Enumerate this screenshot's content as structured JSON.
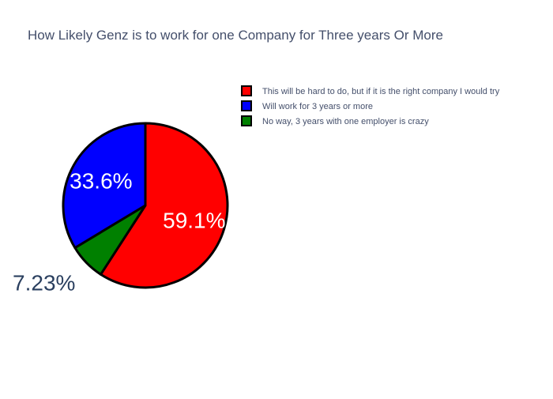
{
  "chart_data": {
    "type": "pie",
    "title": "How Likely Genz is to work for one Company for Three years Or More",
    "legend_position": "top-right",
    "slices": [
      {
        "label": "This will be hard to do, but if it is the right company I would try",
        "percent": 59.1,
        "percent_label": "59.1%",
        "color": "#ff0000"
      },
      {
        "label": "No way, 3 years with one employer is crazy",
        "percent": 7.23,
        "percent_label": "7.23%",
        "color": "#008000"
      },
      {
        "label": "Will work for 3 years or more",
        "percent": 33.6,
        "percent_label": "33.6%",
        "color": "#0000ff"
      }
    ],
    "legend": [
      {
        "label": "This will be hard to do, but if it is the right company I would try",
        "color": "#ff0000"
      },
      {
        "label": "Will work for 3 years or more",
        "color": "#0000ff"
      },
      {
        "label": "No way, 3 years with one employer is crazy",
        "color": "#008000"
      }
    ]
  }
}
